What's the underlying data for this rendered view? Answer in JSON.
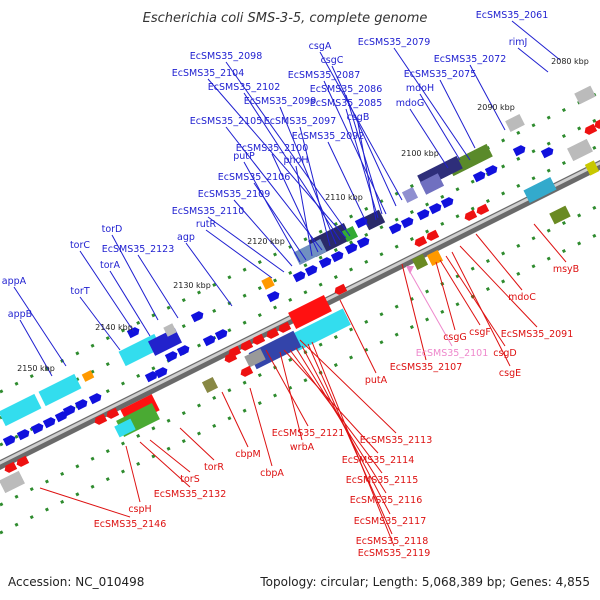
{
  "title": "Escherichia coli SMS-3-5, complete genome",
  "footer": {
    "accession": "Accession: NC_010498",
    "topology": "Topology: circular; Length: 5,068,389 bp; Genes: 4,855"
  },
  "colors": {
    "forward_label": "#1f1fd0",
    "reverse_label": "#dd1111",
    "rna_label": "#ee88cc",
    "backbone": "#8a8a8a"
  },
  "ticks": [
    "2080 kbp",
    "2090 kbp",
    "2100 kbp",
    "2110 kbp",
    "2120 kbp",
    "2130 kbp",
    "2140 kbp",
    "2150 kbp"
  ],
  "forward_genes": [
    "EcSMS35_2061",
    "rimJ",
    "EcSMS35_2072",
    "EcSMS35_2075",
    "EcSMS35_2079",
    "mdoH",
    "mdoG",
    "csgA",
    "csgC",
    "EcSMS35_2087",
    "EcSMS35_2086",
    "EcSMS35_2085",
    "csgB",
    "EcSMS35_2092",
    "EcSMS35_2098",
    "EcSMS35_2104",
    "EcSMS35_2102",
    "EcSMS35_2099",
    "EcSMS35_2097",
    "EcSMS35_2105",
    "EcSMS35_2100",
    "phoH",
    "putP",
    "EcSMS35_2106",
    "EcSMS35_2109",
    "EcSMS35_2110",
    "rutR",
    "agp",
    "torD",
    "torC",
    "EcSMS35_2123",
    "torA",
    "torT",
    "appA",
    "appB"
  ],
  "reverse_genes": [
    "msyB",
    "mdoC",
    "EcSMS35_2091",
    "csgG",
    "csgF",
    "csgD",
    "csgE",
    "EcSMS35_2107",
    "putA",
    "EcSMS35_2113",
    "EcSMS35_2121",
    "wrbA",
    "EcSMS35_2114",
    "EcSMS35_2115",
    "EcSMS35_2116",
    "EcSMS35_2117",
    "EcSMS35_2118",
    "EcSMS35_2119",
    "cbpM",
    "cbpA",
    "torR",
    "torS",
    "EcSMS35_2132",
    "cspH",
    "EcSMS35_2146"
  ],
  "rna_genes": [
    "EcSMS35_2101"
  ]
}
